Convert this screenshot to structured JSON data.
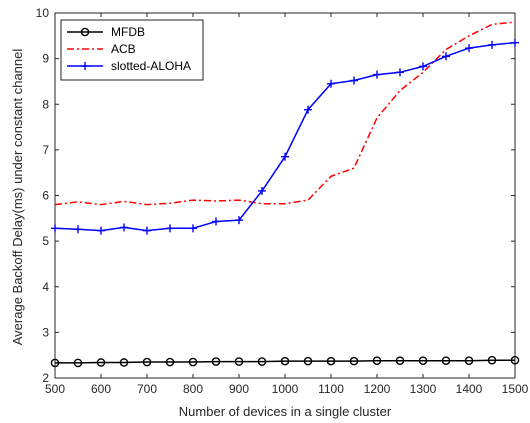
{
  "chart_data": {
    "type": "line",
    "title": "",
    "xlabel": "Number of devices in a single cluster",
    "ylabel": "Average Backoff Delay(ms) under constant channel",
    "xlim": [
      500,
      1500
    ],
    "ylim": [
      2,
      10
    ],
    "xticks": [
      500,
      600,
      700,
      800,
      900,
      1000,
      1100,
      1200,
      1300,
      1400,
      1500
    ],
    "yticks": [
      2,
      3,
      4,
      5,
      6,
      7,
      8,
      9,
      10
    ],
    "grid": false,
    "legend_position": "top-left",
    "x": [
      500,
      550,
      600,
      650,
      700,
      750,
      800,
      850,
      900,
      950,
      1000,
      1050,
      1100,
      1150,
      1200,
      1250,
      1300,
      1350,
      1400,
      1450,
      1500
    ],
    "series": [
      {
        "name": "MFDB",
        "color": "#000000",
        "dash": "solid",
        "marker": "circle",
        "values": [
          2.33,
          2.33,
          2.34,
          2.34,
          2.35,
          2.35,
          2.35,
          2.36,
          2.36,
          2.36,
          2.37,
          2.37,
          2.37,
          2.37,
          2.38,
          2.38,
          2.38,
          2.38,
          2.38,
          2.39,
          2.39
        ]
      },
      {
        "name": "ACB",
        "color": "#ff0000",
        "dash": "dashdot",
        "marker": "none",
        "values": [
          5.8,
          5.86,
          5.8,
          5.87,
          5.8,
          5.83,
          5.9,
          5.88,
          5.9,
          5.82,
          5.82,
          5.9,
          6.42,
          6.6,
          7.7,
          8.3,
          8.7,
          9.2,
          9.5,
          9.75,
          9.8
        ]
      },
      {
        "name": "slotted-ALOHA",
        "color": "#0000ff",
        "dash": "solid",
        "marker": "plus",
        "values": [
          5.28,
          5.26,
          5.23,
          5.3,
          5.23,
          5.28,
          5.28,
          5.43,
          5.46,
          6.1,
          6.85,
          7.88,
          8.45,
          8.52,
          8.65,
          8.7,
          8.83,
          9.05,
          9.23,
          9.3,
          9.35
        ]
      }
    ]
  }
}
